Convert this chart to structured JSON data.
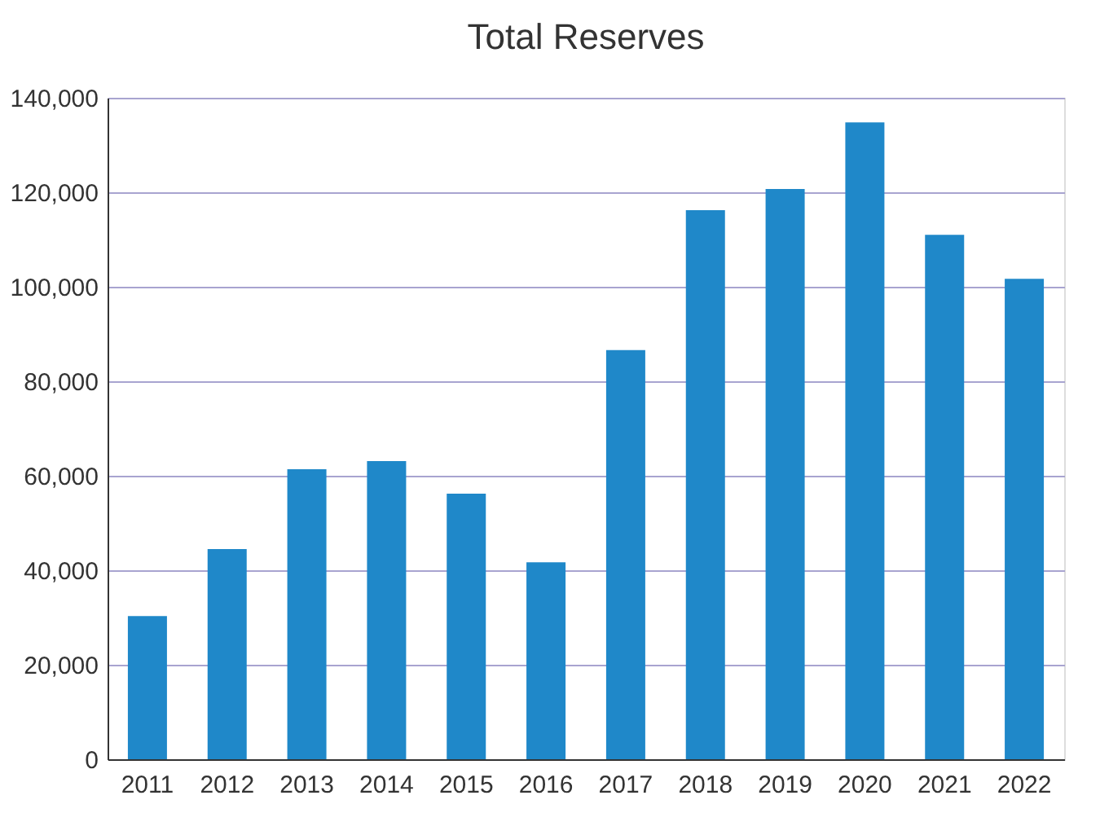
{
  "chart_data": {
    "type": "bar",
    "title": "Total Reserves",
    "categories": [
      "2011",
      "2012",
      "2013",
      "2014",
      "2015",
      "2016",
      "2017",
      "2018",
      "2019",
      "2020",
      "2021",
      "2022"
    ],
    "values": [
      30300,
      44500,
      61400,
      63100,
      56200,
      41700,
      86600,
      116200,
      120700,
      134800,
      111000,
      101700
    ],
    "color": "#1f88c9",
    "ylim": [
      0,
      140000
    ],
    "yticks": [
      0,
      {
        "value": 20000,
        "label": "20,000"
      },
      {
        "value": 40000,
        "label": "40,000"
      },
      {
        "value": 60000,
        "label": "60,000"
      },
      {
        "value": 80000,
        "label": "80,000"
      },
      {
        "value": 100000,
        "label": "100,000"
      },
      {
        "value": 120000,
        "label": "120,000"
      },
      {
        "value": 140000,
        "label": "140,000"
      }
    ],
    "grid": "y"
  }
}
